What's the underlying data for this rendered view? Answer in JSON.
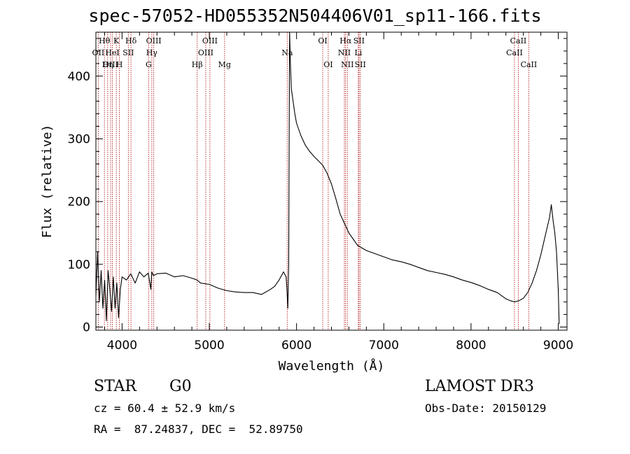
{
  "header": {
    "title": "spec-57052-HD055352N504406V01_sp11-166.fits"
  },
  "footer": {
    "class_label": "STAR",
    "subclass_label": "G0",
    "survey_label": "LAMOST DR3",
    "redshift_text": "cz = 60.4 ± 52.9 km/s",
    "obsdate_text": "Obs-Date: 20150129",
    "coords_text": "RA =  87.24837, DEC =  52.89750"
  },
  "colors": {
    "axis": "#000000",
    "line_marker": "#b22222",
    "spectrum": "#000000"
  },
  "chart_data": {
    "type": "line",
    "title": "spec-57052-HD055352N504406V01_sp11-166.fits",
    "xlabel": "Wavelength (Å)",
    "ylabel": "Flux (relative)",
    "xlim": [
      3700,
      9100
    ],
    "ylim": [
      -5,
      470
    ],
    "xticks": [
      4000,
      5000,
      6000,
      7000,
      8000,
      9000
    ],
    "yticks": [
      0,
      100,
      200,
      300,
      400
    ],
    "series": [
      {
        "name": "spectrum",
        "x": [
          3700,
          3720,
          3740,
          3760,
          3780,
          3800,
          3820,
          3840,
          3860,
          3880,
          3900,
          3920,
          3940,
          3960,
          3980,
          4000,
          4050,
          4100,
          4150,
          4200,
          4250,
          4300,
          4330,
          4340,
          4360,
          4400,
          4500,
          4600,
          4700,
          4800,
          4860,
          4900,
          5000,
          5100,
          5200,
          5300,
          5400,
          5500,
          5600,
          5700,
          5750,
          5800,
          5850,
          5880,
          5890,
          5900,
          5910,
          5920,
          5930,
          5940,
          5960,
          5980,
          6000,
          6050,
          6100,
          6150,
          6200,
          6250,
          6300,
          6350,
          6400,
          6450,
          6500,
          6550,
          6600,
          6650,
          6700,
          6800,
          6900,
          7000,
          7100,
          7200,
          7300,
          7400,
          7500,
          7600,
          7700,
          7800,
          7900,
          8000,
          8100,
          8200,
          8300,
          8400,
          8450,
          8500,
          8550,
          8600,
          8650,
          8700,
          8750,
          8800,
          8850,
          8900,
          8920,
          8940,
          8960,
          8980,
          9000,
          9010
        ],
        "y": [
          50,
          120,
          40,
          90,
          30,
          75,
          10,
          90,
          60,
          25,
          80,
          30,
          70,
          15,
          60,
          80,
          75,
          85,
          70,
          88,
          80,
          86,
          60,
          88,
          82,
          85,
          86,
          80,
          82,
          78,
          75,
          70,
          68,
          62,
          58,
          56,
          55,
          55,
          52,
          60,
          65,
          75,
          88,
          80,
          60,
          30,
          100,
          470,
          420,
          380,
          360,
          340,
          325,
          305,
          290,
          280,
          272,
          265,
          258,
          245,
          228,
          205,
          180,
          165,
          150,
          140,
          130,
          122,
          117,
          112,
          107,
          104,
          100,
          95,
          90,
          87,
          84,
          80,
          75,
          71,
          66,
          60,
          55,
          45,
          42,
          40,
          42,
          46,
          55,
          70,
          90,
          115,
          145,
          175,
          195,
          170,
          150,
          120,
          60,
          5
        ]
      }
    ],
    "line_markers": [
      {
        "label": "Hθ",
        "wave": 3798,
        "row": 1
      },
      {
        "label": "OII",
        "wave": 3727,
        "row": 2
      },
      {
        "label": "OIII",
        "wave": 3868,
        "row": 3
      },
      {
        "label": "K",
        "wave": 3934,
        "row": 1
      },
      {
        "label": "HeI",
        "wave": 3889,
        "row": 2
      },
      {
        "label": "Hη",
        "wave": 3835,
        "row": 3
      },
      {
        "label": "H",
        "wave": 3969,
        "row": 3
      },
      {
        "label": "Hδ",
        "wave": 4102,
        "row": 1
      },
      {
        "label": "SII",
        "wave": 4072,
        "row": 2
      },
      {
        "label": "OIII",
        "wave": 4363,
        "row": 1
      },
      {
        "label": "Hγ",
        "wave": 4341,
        "row": 2
      },
      {
        "label": "G",
        "wave": 4305,
        "row": 3
      },
      {
        "label": "Hβ",
        "wave": 4861,
        "row": 3
      },
      {
        "label": "OIII",
        "wave": 5007,
        "row": 1
      },
      {
        "label": "OIII",
        "wave": 4959,
        "row": 2
      },
      {
        "label": "Mg",
        "wave": 5175,
        "row": 3
      },
      {
        "label": "Na",
        "wave": 5893,
        "row": 2
      },
      {
        "label": "OI",
        "wave": 6300,
        "row": 1
      },
      {
        "label": "OI",
        "wave": 6363,
        "row": 3
      },
      {
        "label": "Hα",
        "wave": 6563,
        "row": 1
      },
      {
        "label": "SII",
        "wave": 6716,
        "row": 1
      },
      {
        "label": "NII",
        "wave": 6548,
        "row": 2
      },
      {
        "label": "Li",
        "wave": 6708,
        "row": 2
      },
      {
        "label": "NII",
        "wave": 6583,
        "row": 3
      },
      {
        "label": "SII",
        "wave": 6731,
        "row": 3
      },
      {
        "label": "CaII",
        "wave": 8542,
        "row": 1
      },
      {
        "label": "CaII",
        "wave": 8498,
        "row": 2
      },
      {
        "label": "CaII",
        "wave": 8662,
        "row": 3
      }
    ]
  }
}
